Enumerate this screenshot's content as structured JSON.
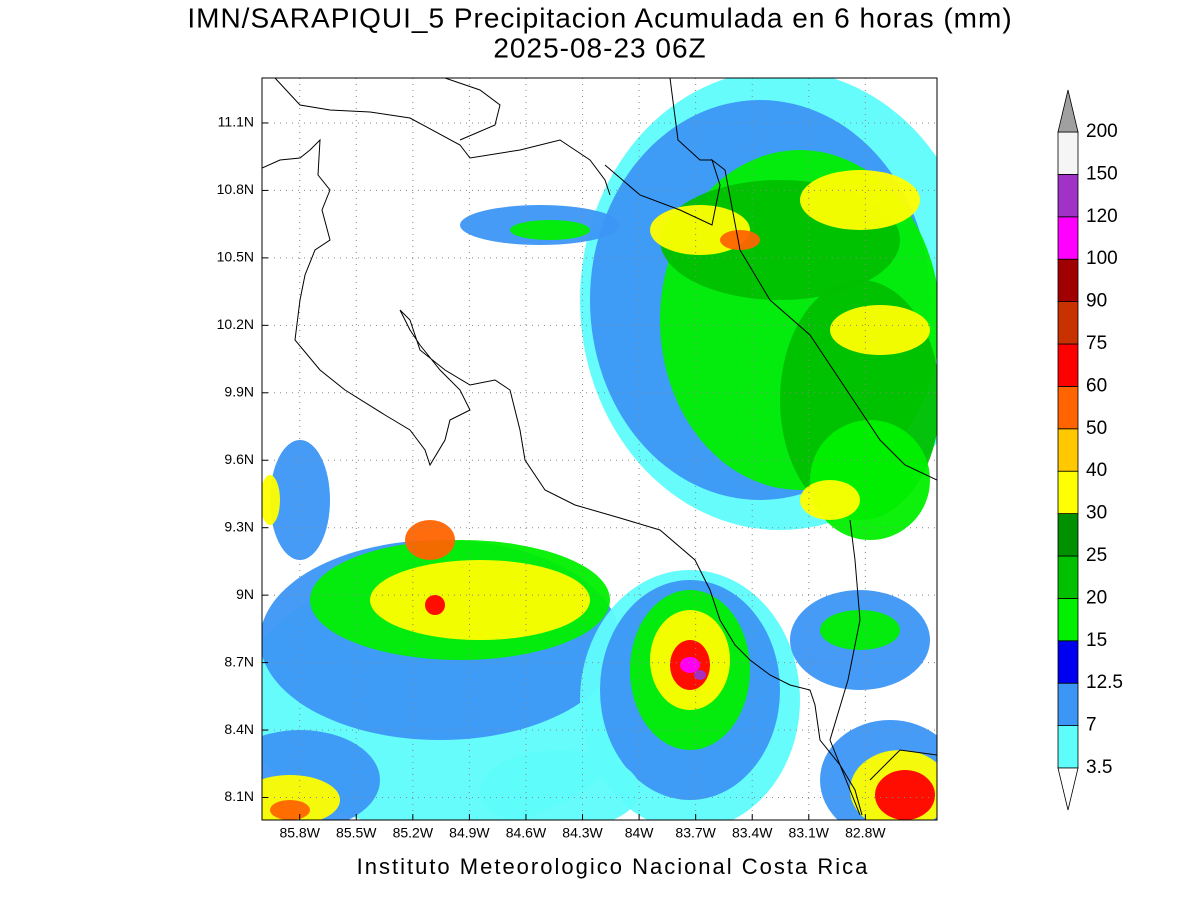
{
  "title": "IMN/SARAPIQUI_5 Precipitacion Acumulada en 6 horas (mm)",
  "subtitle": "2025-08-23 06Z",
  "footer": "Instituto Meteorologico Nacional Costa Rica",
  "map": {
    "lonlim": [
      -86.0,
      -82.42
    ],
    "latlim": [
      8.0,
      11.3
    ],
    "lon_ticks": [
      {
        "value": -85.8,
        "label": "85.8W"
      },
      {
        "value": -85.5,
        "label": "85.5W"
      },
      {
        "value": -85.2,
        "label": "85.2W"
      },
      {
        "value": -84.9,
        "label": "84.9W"
      },
      {
        "value": -84.6,
        "label": "84.6W"
      },
      {
        "value": -84.3,
        "label": "84.3W"
      },
      {
        "value": -84.0,
        "label": "84W"
      },
      {
        "value": -83.7,
        "label": "83.7W"
      },
      {
        "value": -83.4,
        "label": "83.4W"
      },
      {
        "value": -83.1,
        "label": "83.1W"
      },
      {
        "value": -82.8,
        "label": "82.8W"
      }
    ],
    "lat_ticks": [
      {
        "value": 8.1,
        "label": "8.1N"
      },
      {
        "value": 8.4,
        "label": "8.4N"
      },
      {
        "value": 8.7,
        "label": "8.7N"
      },
      {
        "value": 9.0,
        "label": "9N"
      },
      {
        "value": 9.3,
        "label": "9.3N"
      },
      {
        "value": 9.6,
        "label": "9.6N"
      },
      {
        "value": 9.9,
        "label": "9.9N"
      },
      {
        "value": 10.2,
        "label": "10.2N"
      },
      {
        "value": 10.5,
        "label": "10.5N"
      },
      {
        "value": 10.8,
        "label": "10.8N"
      },
      {
        "value": 11.1,
        "label": "11.1N"
      }
    ]
  },
  "colorbar": {
    "levels": [
      3.5,
      7,
      12.5,
      15,
      20,
      25,
      30,
      40,
      50,
      60,
      75,
      90,
      100,
      120,
      150,
      200
    ],
    "colors": [
      "#ffffff",
      "#5ffcfc",
      "#3c96f5",
      "#0000f0",
      "#00f000",
      "#00c000",
      "#009000",
      "#ffff00",
      "#ffc800",
      "#ff6400",
      "#ff0000",
      "#c83200",
      "#a00000",
      "#ff00ff",
      "#a032c8",
      "#f5f5f5",
      "#a0a0a0"
    ]
  }
}
